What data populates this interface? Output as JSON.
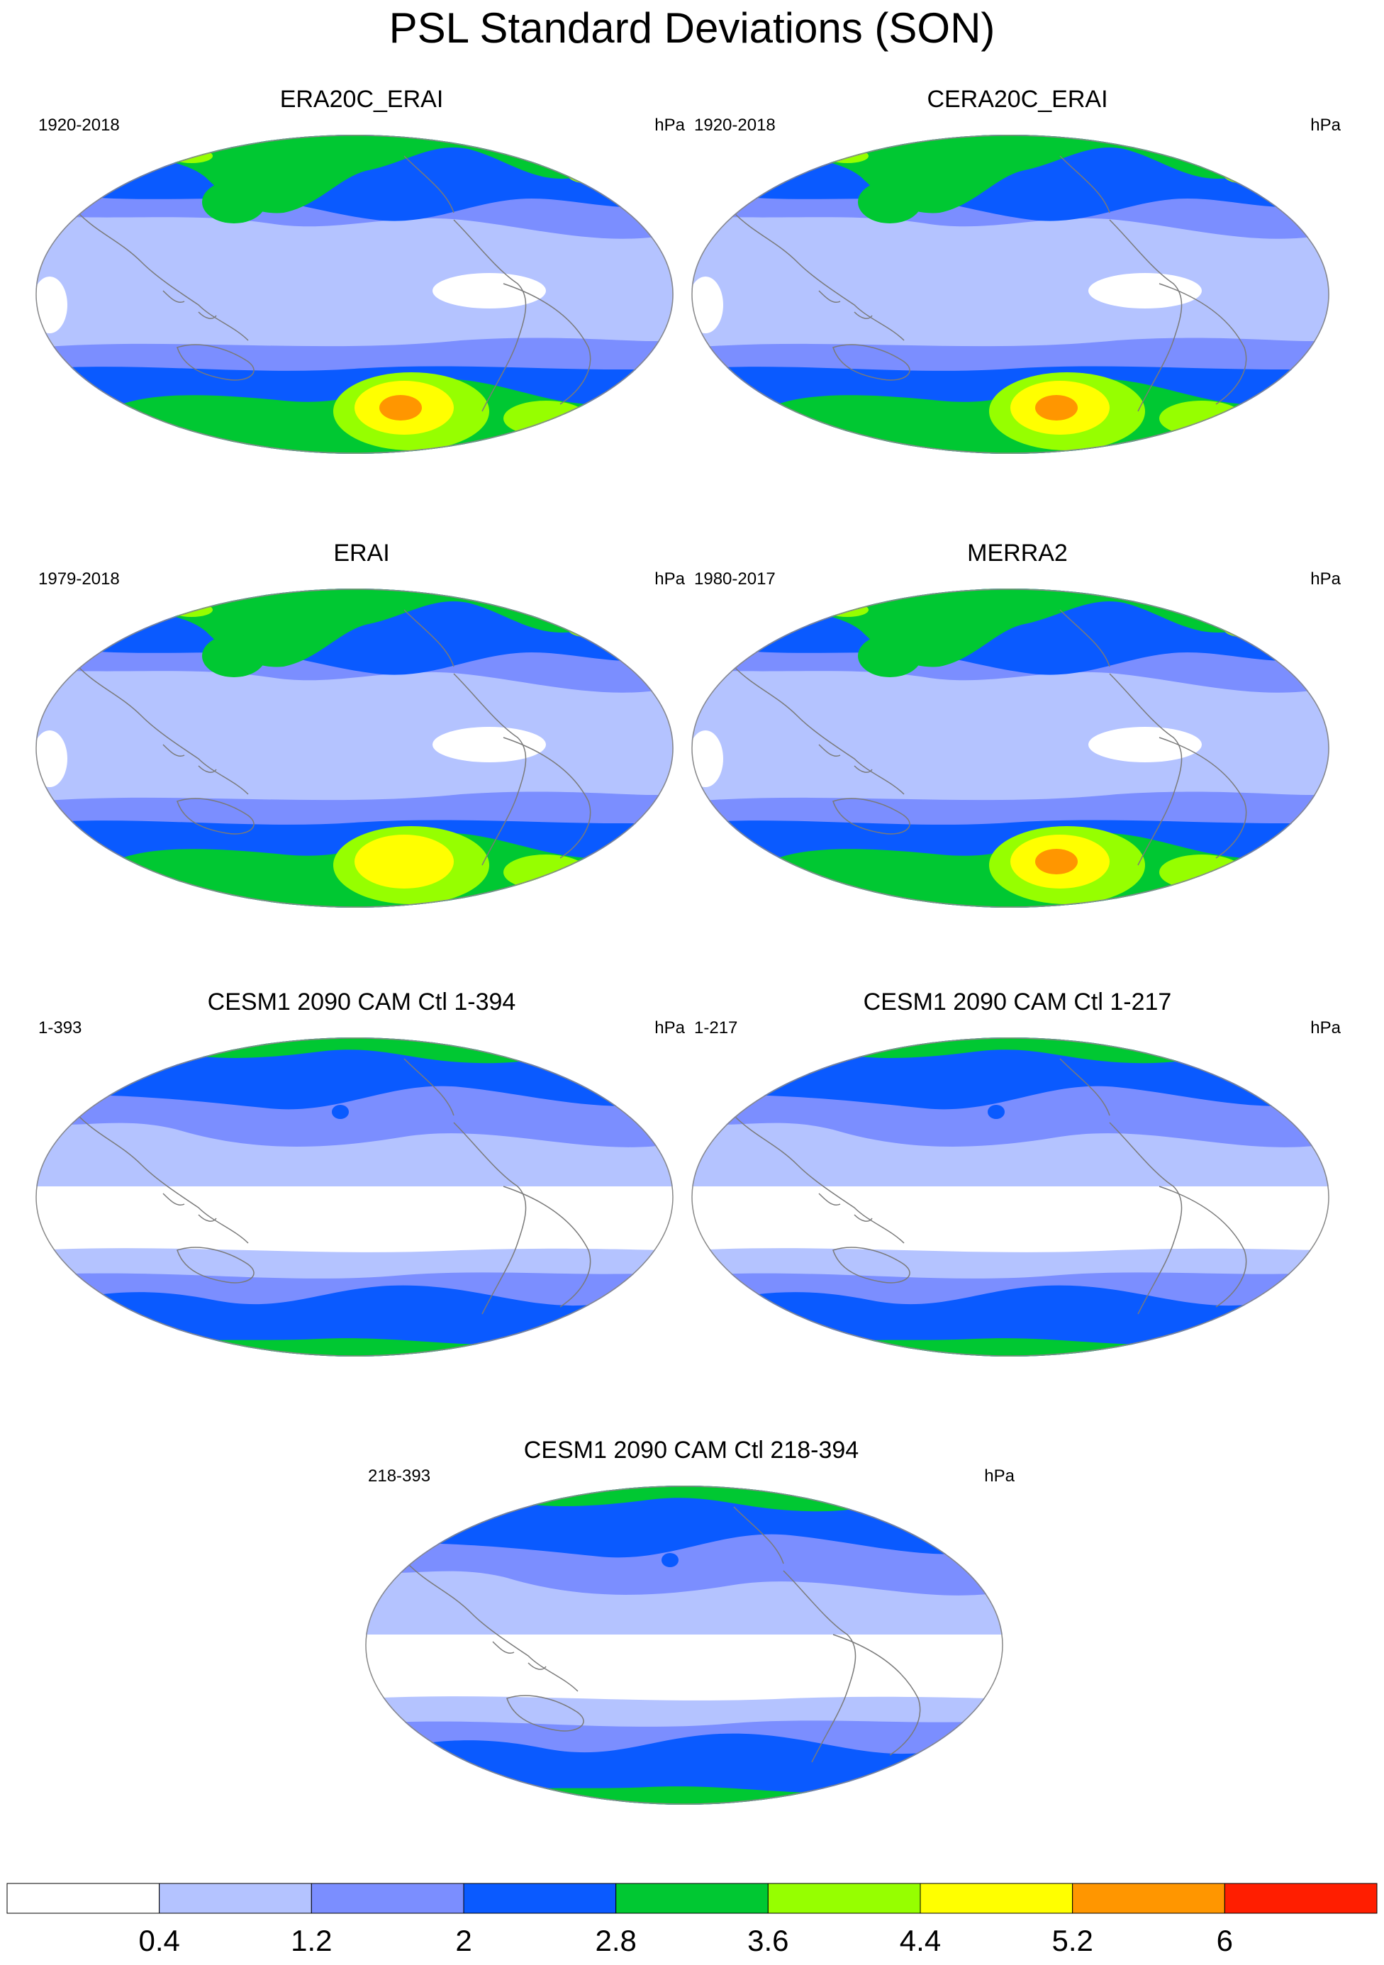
{
  "title": "PSL Standard Deviations (SON)",
  "panels": [
    {
      "title": "ERA20C_ERAI",
      "period": "1920-2018",
      "units": "hPa",
      "pattern": "reanalysis-a"
    },
    {
      "title": "CERA20C_ERAI",
      "period": "1920-2018",
      "units": "hPa",
      "pattern": "reanalysis-b"
    },
    {
      "title": "ERAI",
      "period": "1979-2018",
      "units": "hPa",
      "pattern": "reanalysis-c"
    },
    {
      "title": "MERRA2",
      "period": "1980-2017",
      "units": "hPa",
      "pattern": "reanalysis-d"
    },
    {
      "title": "CESM1 2090 CAM Ctl 1-394",
      "period": "1-393",
      "units": "hPa",
      "pattern": "model"
    },
    {
      "title": "CESM1 2090 CAM Ctl 1-217",
      "period": "1-217",
      "units": "hPa",
      "pattern": "model"
    },
    {
      "title": "CESM1 2090 CAM Ctl 218-394",
      "period": "218-393",
      "units": "hPa",
      "pattern": "model"
    }
  ],
  "colorbar": {
    "levels": [
      "0.4",
      "1.2",
      "2",
      "2.8",
      "3.6",
      "4.4",
      "5.2",
      "6"
    ],
    "colors": [
      "#ffffff",
      "#b4c3ff",
      "#7b8eff",
      "#0a5aff",
      "#00c832",
      "#96ff00",
      "#ffff00",
      "#ff9600",
      "#ff1e00"
    ]
  },
  "map_colors": {
    "land_outline": "#7a7a7a",
    "map_border": "#888888"
  }
}
